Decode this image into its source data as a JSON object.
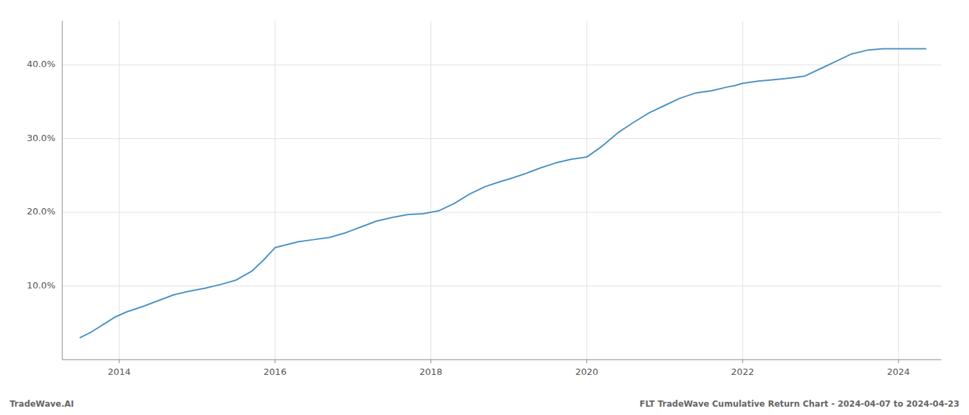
{
  "chart_data": {
    "type": "line",
    "x": [
      2013.5,
      2013.65,
      2013.8,
      2013.95,
      2014.1,
      2014.3,
      2014.5,
      2014.7,
      2014.9,
      2015.1,
      2015.3,
      2015.5,
      2015.7,
      2015.85,
      2016.0,
      2016.15,
      2016.3,
      2016.5,
      2016.7,
      2016.9,
      2017.1,
      2017.3,
      2017.5,
      2017.7,
      2017.9,
      2018.1,
      2018.3,
      2018.5,
      2018.7,
      2018.9,
      2019.0,
      2019.2,
      2019.4,
      2019.6,
      2019.8,
      2020.0,
      2020.2,
      2020.4,
      2020.6,
      2020.8,
      2021.0,
      2021.2,
      2021.4,
      2021.6,
      2021.8,
      2021.9,
      2022.0,
      2022.2,
      2022.4,
      2022.6,
      2022.8,
      2023.0,
      2023.2,
      2023.4,
      2023.6,
      2023.8,
      2024.0,
      2024.2,
      2024.35
    ],
    "values": [
      3.0,
      3.8,
      4.8,
      5.8,
      6.5,
      7.2,
      8.0,
      8.8,
      9.3,
      9.7,
      10.2,
      10.8,
      12.0,
      13.5,
      15.2,
      15.6,
      16.0,
      16.3,
      16.6,
      17.2,
      18.0,
      18.8,
      19.3,
      19.7,
      19.8,
      20.2,
      21.2,
      22.5,
      23.5,
      24.2,
      24.5,
      25.2,
      26.0,
      26.7,
      27.2,
      27.5,
      29.0,
      30.8,
      32.2,
      33.5,
      34.5,
      35.5,
      36.2,
      36.5,
      37.0,
      37.2,
      37.5,
      37.8,
      38.0,
      38.2,
      38.5,
      39.5,
      40.5,
      41.5,
      42.0,
      42.2,
      42.2,
      42.2,
      42.2
    ],
    "color": "#4a90c4",
    "xlim": [
      2013.27,
      2024.55
    ],
    "xticks": [
      2014,
      2016,
      2018,
      2020,
      2022,
      2024
    ],
    "ylim": [
      0,
      46
    ],
    "yticks": [
      {
        "value": 10.0,
        "label": "10.0%"
      },
      {
        "value": 20.0,
        "label": "20.0%"
      },
      {
        "value": 30.0,
        "label": "30.0%"
      },
      {
        "value": 40.0,
        "label": "40.0%"
      }
    ],
    "grid": true,
    "annotations": [
      "TradeWave.AI",
      "FLT TradeWave Cumulative Return Chart - 2024-04-07 to 2024-04-23"
    ]
  }
}
